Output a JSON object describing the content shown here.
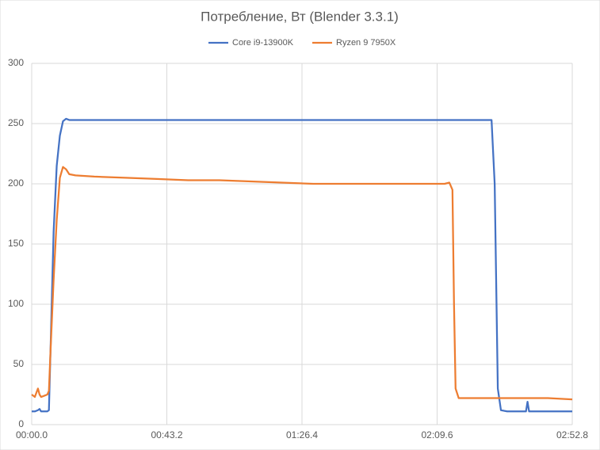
{
  "chart_data": {
    "type": "line",
    "title": "Потребление, Вт (Blender 3.3.1)",
    "x": [
      0,
      1,
      2,
      2.5,
      3,
      4,
      5,
      5.5,
      6,
      7,
      8,
      9,
      10,
      11,
      12,
      14,
      20,
      30,
      40,
      50,
      60,
      70,
      80,
      90,
      100,
      110,
      120,
      130,
      132,
      133.5,
      134.5,
      135,
      135.5,
      136.5,
      138,
      140,
      145,
      147,
      148,
      149,
      150,
      152,
      155,
      158,
      158.5,
      159,
      165,
      172.8
    ],
    "series": [
      {
        "name": "Core i9-13900K",
        "color": "#4472c4",
        "values": [
          11,
          11,
          12,
          13,
          11,
          11,
          11,
          12,
          60,
          160,
          215,
          240,
          252,
          254,
          253,
          253,
          253,
          253,
          253,
          253,
          253,
          253,
          253,
          253,
          253,
          253,
          253,
          253,
          253,
          253,
          253,
          253,
          253,
          253,
          253,
          253,
          253,
          253,
          200,
          30,
          12,
          11,
          11,
          11,
          19,
          11,
          11,
          11
        ]
      },
      {
        "name": "Ryzen 9 7950X",
        "color": "#ed7d31",
        "values": [
          25,
          23,
          30,
          25,
          23,
          24,
          25,
          28,
          60,
          120,
          170,
          205,
          214,
          212,
          208,
          207,
          206,
          205,
          204,
          203,
          203,
          202,
          201,
          200,
          200,
          200,
          200,
          200,
          200,
          201,
          195,
          100,
          30,
          22,
          22,
          22,
          22,
          22,
          22,
          22,
          22,
          22,
          22,
          22,
          22,
          22,
          22,
          21
        ]
      }
    ],
    "xlim": [
      0,
      172.8
    ],
    "xticks": [
      {
        "value": 0,
        "label": "00:00.0"
      },
      {
        "value": 43.2,
        "label": "00:43.2"
      },
      {
        "value": 86.4,
        "label": "01:26.4"
      },
      {
        "value": 129.6,
        "label": "02:09.6"
      },
      {
        "value": 172.8,
        "label": "02:52.8"
      }
    ],
    "ylim": [
      0,
      300
    ],
    "yticks": [
      0,
      50,
      100,
      150,
      200,
      250,
      300
    ],
    "grid": true,
    "legend": "top"
  }
}
